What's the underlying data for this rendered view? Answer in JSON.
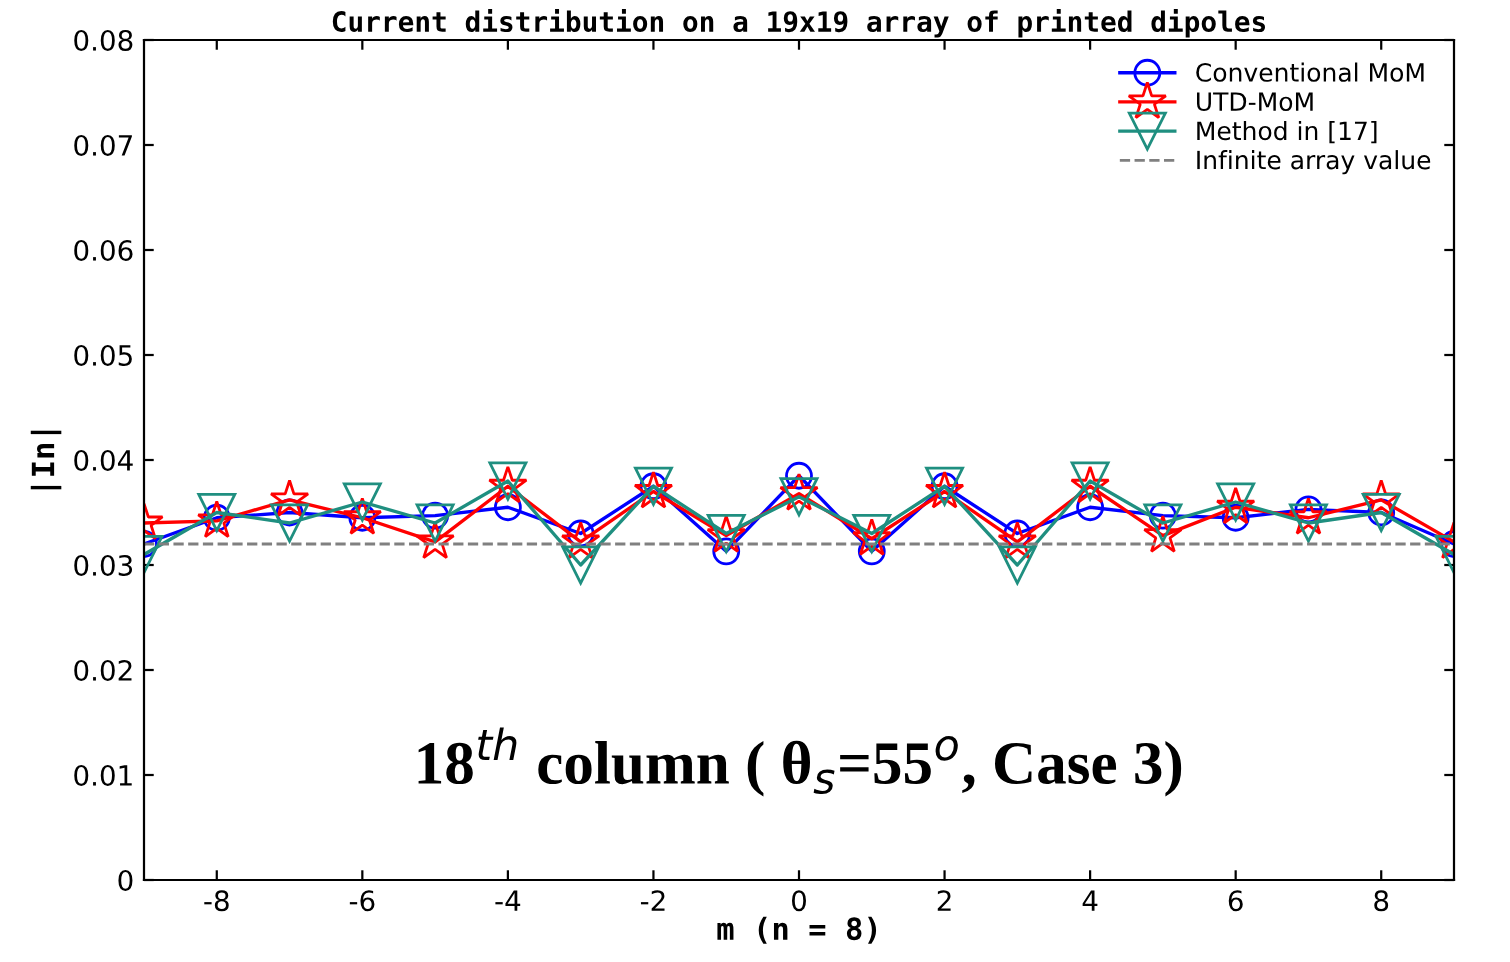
{
  "chart_data": {
    "type": "line",
    "title": "Current distribution on a 19x19 array of printed dipoles",
    "xlabel": "m (n = 8)",
    "ylabel": "|In|",
    "x": [
      -9,
      -8,
      -7,
      -6,
      -5,
      -4,
      -3,
      -2,
      -1,
      0,
      1,
      2,
      3,
      4,
      5,
      6,
      7,
      8,
      9
    ],
    "series": [
      {
        "name": "Conventional MoM",
        "color": "#0000ff",
        "marker": "circle",
        "values": [
          0.032,
          0.0345,
          0.035,
          0.0345,
          0.0347,
          0.0355,
          0.033,
          0.0375,
          0.0313,
          0.0385,
          0.0313,
          0.0375,
          0.033,
          0.0355,
          0.0347,
          0.0345,
          0.0353,
          0.035,
          0.032
        ]
      },
      {
        "name": "UTD-MoM",
        "color": "#ff0000",
        "marker": "star",
        "values": [
          0.034,
          0.0342,
          0.0362,
          0.0345,
          0.0322,
          0.0375,
          0.0322,
          0.037,
          0.0328,
          0.0368,
          0.0325,
          0.037,
          0.0322,
          0.0375,
          0.0328,
          0.0355,
          0.0345,
          0.0362,
          0.0322
        ]
      },
      {
        "name": "Method in [17]",
        "color": "#1f8f80",
        "marker": "triangle",
        "values": [
          0.031,
          0.035,
          0.034,
          0.036,
          0.034,
          0.038,
          0.03,
          0.0375,
          0.033,
          0.0365,
          0.033,
          0.0375,
          0.03,
          0.038,
          0.034,
          0.036,
          0.034,
          0.035,
          0.031
        ]
      }
    ],
    "ref_lines": [
      {
        "axis": "y",
        "value": 0.032,
        "label": "Infinite array value",
        "color": "#808080",
        "line_style": "dashed"
      }
    ],
    "annotations": [
      "18$^{th}$ column ( θ$_{s}$=55$^{o}$, Case 3)"
    ],
    "xlim": [
      -9,
      9
    ],
    "xticks": [
      -8,
      -6,
      -4,
      -2,
      0,
      2,
      4,
      6,
      8
    ],
    "ylim": [
      0,
      0.08
    ],
    "yticks": [
      0,
      0.01,
      0.02,
      0.03,
      0.04,
      0.05,
      0.06,
      0.07,
      0.08
    ],
    "grid": false,
    "legend": "top right"
  }
}
